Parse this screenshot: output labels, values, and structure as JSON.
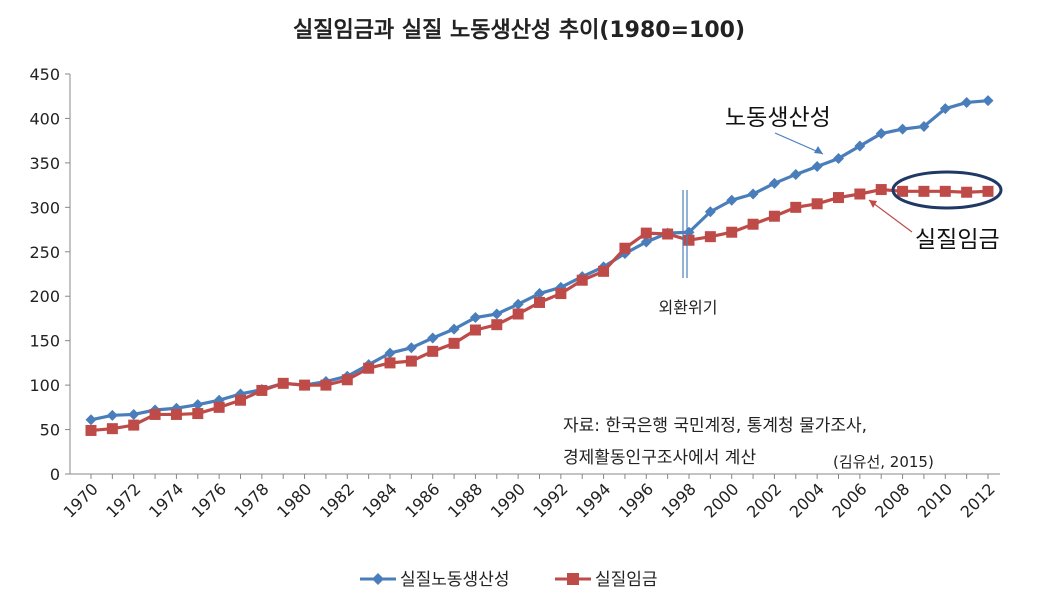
{
  "chart_data": {
    "type": "line",
    "title": "실질임금과 실질 노동생산성 추이(1980=100)",
    "x": [
      1970,
      1971,
      1972,
      1973,
      1974,
      1975,
      1976,
      1977,
      1978,
      1979,
      1980,
      1981,
      1982,
      1983,
      1984,
      1985,
      1986,
      1987,
      1988,
      1989,
      1990,
      1991,
      1992,
      1993,
      1994,
      1995,
      1996,
      1997,
      1998,
      1999,
      2000,
      2001,
      2002,
      2003,
      2004,
      2005,
      2006,
      2007,
      2008,
      2009,
      2010,
      2011,
      2012
    ],
    "x_tick_labels": [
      "1970",
      "1972",
      "1974",
      "1976",
      "1978",
      "1980",
      "1982",
      "1984",
      "1986",
      "1988",
      "1990",
      "1992",
      "1994",
      "1996",
      "1998",
      "2000",
      "2002",
      "2004",
      "2006",
      "2008",
      "2010",
      "2012"
    ],
    "y_tick_labels": [
      "0",
      "50",
      "100",
      "150",
      "200",
      "250",
      "300",
      "350",
      "400",
      "450"
    ],
    "ylim": [
      0,
      450
    ],
    "grid": false,
    "legend_position": "bottom",
    "series": [
      {
        "name": "실질노동생산성",
        "color": "#4a7ebb",
        "marker": "diamond",
        "values": [
          61,
          66,
          67,
          72,
          74,
          78,
          83,
          90,
          95,
          102,
          100,
          104,
          110,
          123,
          136,
          142,
          153,
          163,
          176,
          180,
          191,
          203,
          210,
          222,
          233,
          248,
          261,
          271,
          272,
          295,
          308,
          315,
          327,
          337,
          346,
          355,
          369,
          383,
          388,
          391,
          411,
          418,
          420
        ]
      },
      {
        "name": "실질임금",
        "color": "#be4b48",
        "marker": "square",
        "values": [
          49,
          51,
          55,
          67,
          67,
          68,
          75,
          83,
          94,
          102,
          100,
          100,
          106,
          119,
          125,
          127,
          138,
          147,
          162,
          168,
          180,
          193,
          203,
          218,
          228,
          254,
          271,
          270,
          263,
          267,
          272,
          281,
          290,
          300,
          304,
          311,
          315,
          320,
          318,
          318,
          318,
          317,
          318
        ]
      }
    ],
    "annotations": {
      "productivity_label": "노동생산성",
      "wage_label": "실질임금",
      "crisis_label": "외환위기",
      "source_line1": "자료: 한국은행 국민계정, 통계청 물가조사,",
      "source_line2": "경제활동인구조사에서 계산",
      "source_cite": "(김유선, 2015)"
    }
  }
}
